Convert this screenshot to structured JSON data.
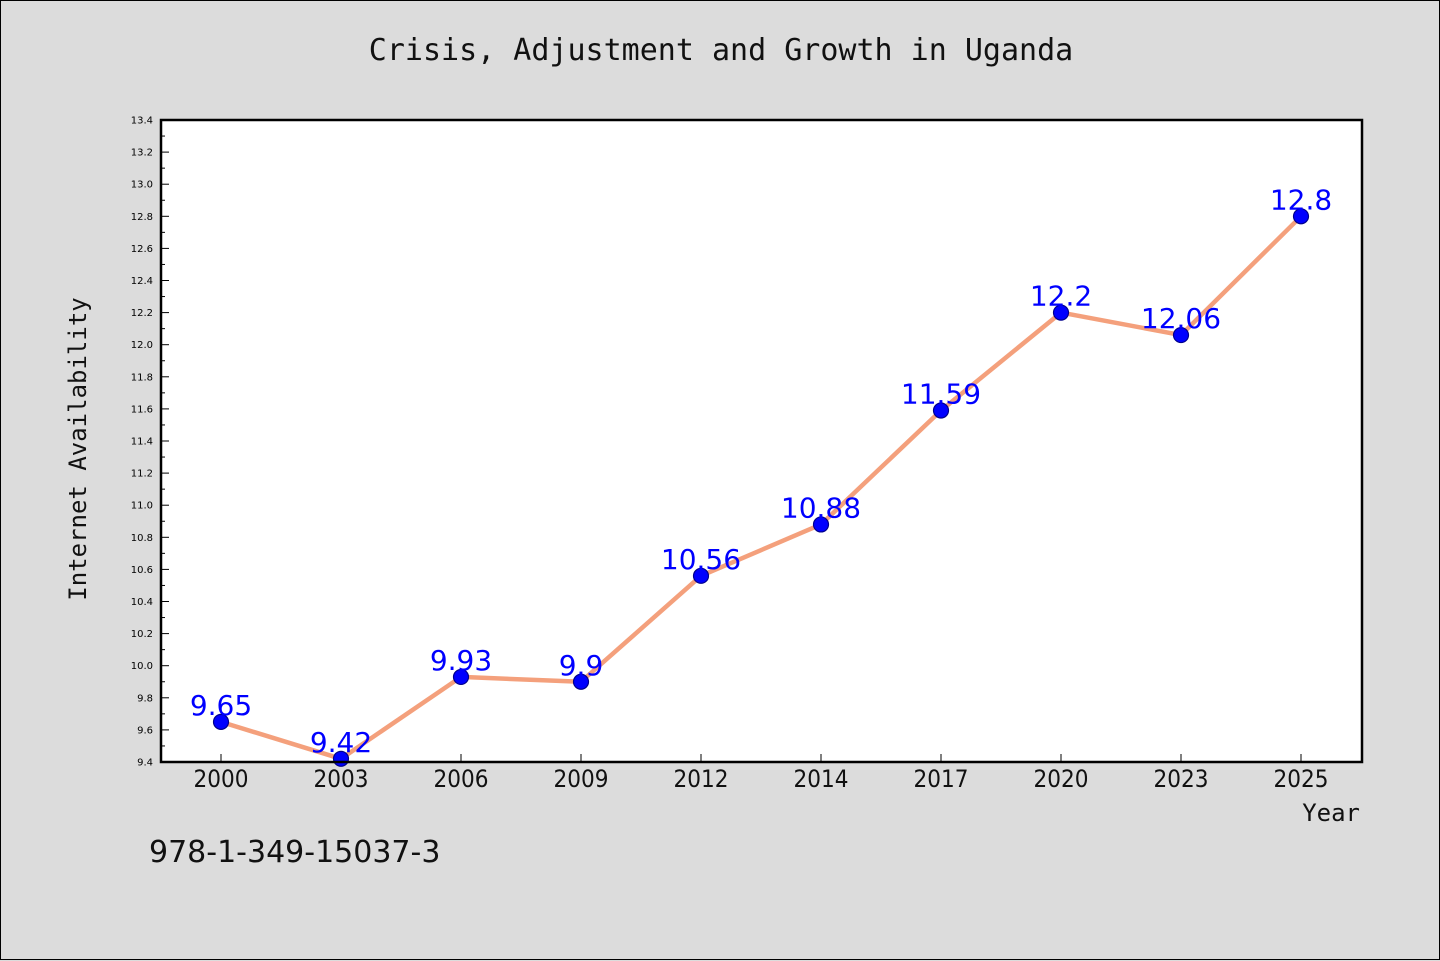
{
  "chart_data": {
    "type": "line",
    "title": "Crisis, Adjustment and Growth in Uganda",
    "xlabel": "Year",
    "ylabel": "Internet Availability",
    "categories": [
      "2000",
      "2003",
      "2006",
      "2009",
      "2012",
      "2014",
      "2017",
      "2020",
      "2023",
      "2025"
    ],
    "series": [
      {
        "values": [
          9.65,
          9.42,
          9.93,
          9.9,
          10.56,
          10.88,
          11.59,
          12.2,
          12.06,
          12.8
        ]
      }
    ],
    "data_labels": [
      "9.65",
      "9.42",
      "9.93",
      "9.9",
      "10.56",
      "10.88",
      "11.59",
      "12.2",
      "12.06",
      "12.8"
    ],
    "ylim": [
      9.4,
      13.4
    ],
    "yticks": [
      "9.4",
      "9.6",
      "9.8",
      "10.0",
      "10.2",
      "10.4",
      "10.6",
      "10.8",
      "11.0",
      "11.2",
      "11.4",
      "11.6",
      "11.8",
      "12.0",
      "12.2",
      "12.4",
      "12.6",
      "12.8",
      "13.0",
      "13.2",
      "13.4"
    ],
    "grid": false,
    "legend": "none",
    "colors": {
      "line": "#f4a07c",
      "marker": "#0000ff",
      "marker_edge": "#00008b",
      "data_label": "#0000ff",
      "plot_background": "#ffffff",
      "figure_background": "#dcdcdc"
    }
  },
  "footer": {
    "isbn": "978-1-349-15037-3"
  }
}
